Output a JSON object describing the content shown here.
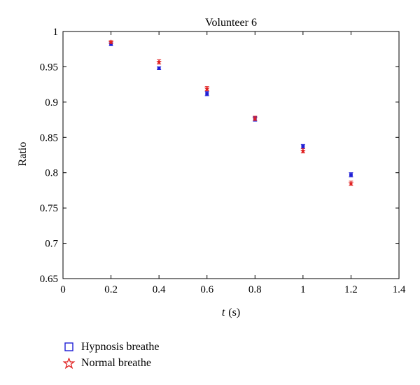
{
  "chart_data": {
    "type": "scatter",
    "title": "Volunteer 6",
    "xlabel_italic": "t",
    "xlabel_unit": "(s)",
    "ylabel": "Ratio",
    "xlim": [
      0,
      1.4
    ],
    "ylim": [
      0.65,
      1.0
    ],
    "xticks": [
      0,
      0.2,
      0.4,
      0.6,
      0.8,
      1,
      1.2,
      1.4
    ],
    "xtick_labels": [
      "0",
      "0.2",
      "0.4",
      "0.6",
      "0.8",
      "1",
      "1.2",
      "1.4"
    ],
    "yticks": [
      0.65,
      0.7,
      0.75,
      0.8,
      0.85,
      0.9,
      0.95,
      1.0
    ],
    "ytick_labels": [
      "0.65",
      "0.7",
      "0.75",
      "0.8",
      "0.85",
      "0.9",
      "0.95",
      "1"
    ],
    "grid": false,
    "legend_position": "below",
    "series": [
      {
        "name": "Hypnosis breathe",
        "marker": "square",
        "color": "#1f1fd6",
        "x": [
          0.2,
          0.4,
          0.6,
          0.8,
          1.0,
          1.2
        ],
        "y": [
          0.982,
          0.948,
          0.912,
          0.876,
          0.837,
          0.797
        ],
        "err": [
          0.002,
          0.002,
          0.003,
          0.003,
          0.003,
          0.003
        ]
      },
      {
        "name": "Normal breathe",
        "marker": "star",
        "color": "#e02020",
        "x": [
          0.2,
          0.4,
          0.6,
          0.8,
          1.0,
          1.2
        ],
        "y": [
          0.985,
          0.957,
          0.919,
          0.877,
          0.831,
          0.785
        ],
        "err": [
          0.002,
          0.003,
          0.003,
          0.003,
          0.003,
          0.003
        ]
      }
    ]
  }
}
